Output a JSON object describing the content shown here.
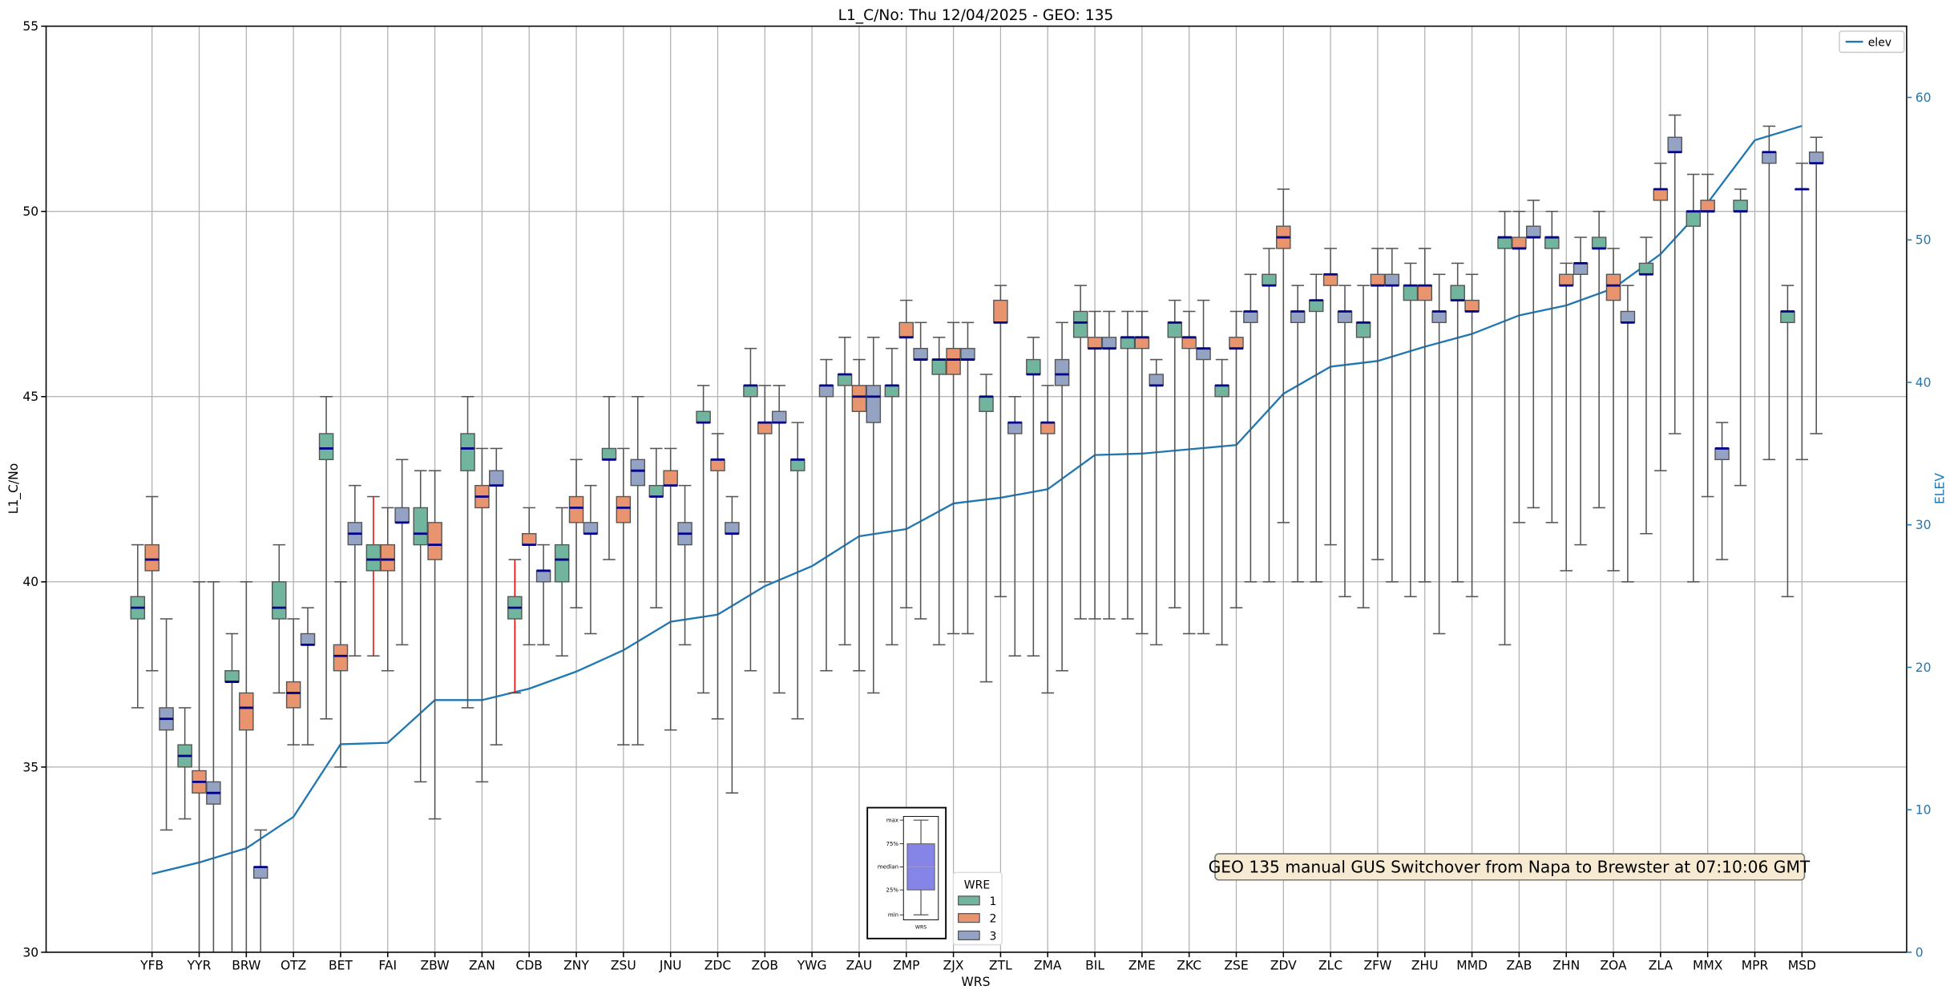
{
  "chart_data": {
    "type": "box",
    "title": "L1_C/No: Thu 12/04/2025 - GEO: 135",
    "xlabel": "WRS",
    "ylabel": "L1_C/No",
    "y2label": "ELEV",
    "ylim": [
      30,
      55
    ],
    "y2lim": [
      0,
      65
    ],
    "yticks": [
      30,
      35,
      40,
      45,
      50,
      55
    ],
    "y2ticks": [
      0,
      10,
      20,
      30,
      40,
      50,
      60
    ],
    "grid": true,
    "hue_title": "WRE",
    "hue_levels": [
      "1",
      "2",
      "3"
    ],
    "colors": {
      "1": "#72b59e",
      "2": "#e8956f",
      "3": "#94a3c4",
      "median": "#00008b",
      "elev": "#1f77b4",
      "red_whisker": "#ff0000",
      "annotation_bg": "#f6ead2"
    },
    "line_legend": "elev",
    "line_legend_placement": "top-right",
    "hue_legend_placement": "bottom-center",
    "annotation": "GEO 135 manual GUS Switchover from Napa to Brewster at 07:10:06 GMT",
    "inset_legend": {
      "labels": [
        "max",
        "75%",
        "median",
        "25%",
        "min"
      ],
      "xlabel": "WRS"
    },
    "categories": [
      "YFB",
      "YYR",
      "BRW",
      "OTZ",
      "BET",
      "FAI",
      "ZBW",
      "ZAN",
      "CDB",
      "ZNY",
      "ZSU",
      "JNU",
      "ZDC",
      "ZOB",
      "YWG",
      "ZAU",
      "ZMP",
      "ZJX",
      "ZTL",
      "ZMA",
      "BIL",
      "ZME",
      "ZKC",
      "ZSE",
      "ZDV",
      "ZLC",
      "ZFW",
      "ZHU",
      "MMD",
      "ZAB",
      "ZHN",
      "ZOA",
      "ZLA",
      "MMX",
      "MPR",
      "MSD"
    ],
    "box_fields": [
      "whislo",
      "q1",
      "med",
      "q3",
      "whishi"
    ],
    "boxes": [
      [
        [
          36.6,
          39.0,
          39.3,
          39.6,
          41.0
        ],
        [
          37.6,
          40.3,
          40.6,
          41.0,
          42.3
        ],
        [
          33.3,
          36.0,
          36.3,
          36.6,
          39.0
        ]
      ],
      [
        [
          33.6,
          35.0,
          35.3,
          35.6,
          36.6
        ],
        [
          30.0,
          34.3,
          34.6,
          34.9,
          40.0
        ],
        [
          30.0,
          34.0,
          34.3,
          34.6,
          40.0
        ]
      ],
      [
        [
          30.0,
          37.3,
          37.3,
          37.6,
          38.6
        ],
        [
          30.0,
          36.0,
          36.6,
          37.0,
          40.0
        ],
        [
          30.0,
          32.0,
          32.3,
          32.3,
          33.3
        ]
      ],
      [
        [
          37.0,
          39.0,
          39.3,
          40.0,
          41.0
        ],
        [
          35.6,
          36.6,
          37.0,
          37.3,
          39.0
        ],
        [
          35.6,
          38.3,
          38.3,
          38.6,
          39.3
        ]
      ],
      [
        [
          36.3,
          43.3,
          43.6,
          44.0,
          45.0
        ],
        [
          35.0,
          37.6,
          38.0,
          38.3,
          40.0
        ],
        [
          38.0,
          41.0,
          41.3,
          41.6,
          42.6
        ]
      ],
      [
        [
          38.0,
          40.3,
          40.6,
          41.0,
          42.3
        ],
        [
          37.6,
          40.3,
          40.6,
          41.0,
          42.0
        ],
        [
          38.3,
          41.6,
          41.6,
          42.0,
          43.3
        ]
      ],
      [
        [
          34.6,
          41.0,
          41.3,
          42.0,
          43.0
        ],
        [
          33.6,
          40.6,
          41.0,
          41.6,
          43.0
        ],
        null
      ],
      [
        [
          36.6,
          43.0,
          43.6,
          44.0,
          45.0
        ],
        [
          34.6,
          42.0,
          42.3,
          42.6,
          43.6
        ],
        [
          35.6,
          42.6,
          42.6,
          43.0,
          43.6
        ]
      ],
      [
        [
          37.0,
          39.0,
          39.3,
          39.6,
          40.6
        ],
        [
          38.3,
          41.0,
          41.0,
          41.3,
          42.0
        ],
        [
          38.3,
          40.0,
          40.3,
          40.3,
          41.0
        ]
      ],
      [
        [
          38.0,
          40.0,
          40.6,
          41.0,
          42.0
        ],
        [
          39.3,
          41.6,
          42.0,
          42.3,
          43.3
        ],
        [
          38.6,
          41.3,
          41.3,
          41.6,
          42.6
        ]
      ],
      [
        [
          40.6,
          43.3,
          43.3,
          43.6,
          45.0
        ],
        [
          35.6,
          41.6,
          42.0,
          42.3,
          43.6
        ],
        [
          35.6,
          42.6,
          43.0,
          43.3,
          45.0
        ]
      ],
      [
        [
          39.3,
          42.3,
          42.3,
          42.6,
          43.6
        ],
        [
          36.0,
          42.6,
          42.6,
          43.0,
          43.6
        ],
        [
          38.3,
          41.0,
          41.3,
          41.6,
          42.6
        ]
      ],
      [
        [
          37.0,
          44.3,
          44.3,
          44.6,
          45.3
        ],
        [
          36.3,
          43.0,
          43.3,
          43.3,
          44.0
        ],
        [
          34.3,
          41.3,
          41.3,
          41.6,
          42.3
        ]
      ],
      [
        [
          37.6,
          45.0,
          45.3,
          45.3,
          46.3
        ],
        [
          40.0,
          44.0,
          44.3,
          44.3,
          45.3
        ],
        [
          37.0,
          44.3,
          44.3,
          44.6,
          45.3
        ]
      ],
      [
        [
          36.3,
          43.0,
          43.3,
          43.3,
          44.3
        ],
        null,
        [
          37.6,
          45.0,
          45.3,
          45.3,
          46.0
        ]
      ],
      [
        [
          38.3,
          45.3,
          45.6,
          45.6,
          46.6
        ],
        [
          37.6,
          44.6,
          45.0,
          45.3,
          46.0
        ],
        [
          37.0,
          44.3,
          45.0,
          45.3,
          46.6
        ]
      ],
      [
        [
          38.3,
          45.0,
          45.3,
          45.3,
          46.3
        ],
        [
          39.3,
          46.6,
          46.6,
          47.0,
          47.6
        ],
        [
          39.0,
          46.0,
          46.0,
          46.3,
          47.0
        ]
      ],
      [
        [
          38.3,
          45.6,
          46.0,
          46.0,
          46.6
        ],
        [
          38.6,
          45.6,
          46.0,
          46.3,
          47.0
        ],
        [
          38.6,
          46.0,
          46.0,
          46.3,
          47.0
        ]
      ],
      [
        [
          37.3,
          44.6,
          45.0,
          45.0,
          45.6
        ],
        [
          39.6,
          47.0,
          47.0,
          47.6,
          48.0
        ],
        [
          38.0,
          44.0,
          44.3,
          44.3,
          45.0
        ]
      ],
      [
        [
          38.0,
          45.6,
          45.6,
          46.0,
          46.6
        ],
        [
          37.0,
          44.0,
          44.3,
          44.3,
          45.3
        ],
        [
          37.6,
          45.3,
          45.6,
          46.0,
          47.0
        ]
      ],
      [
        [
          39.0,
          46.6,
          47.0,
          47.3,
          48.0
        ],
        [
          39.0,
          46.3,
          46.3,
          46.6,
          47.3
        ],
        [
          39.0,
          46.3,
          46.3,
          46.6,
          47.3
        ]
      ],
      [
        [
          39.0,
          46.3,
          46.6,
          46.6,
          47.3
        ],
        [
          38.6,
          46.3,
          46.6,
          46.6,
          47.3
        ],
        [
          38.3,
          45.3,
          45.3,
          45.6,
          46.0
        ]
      ],
      [
        [
          39.3,
          46.6,
          47.0,
          47.0,
          47.6
        ],
        [
          38.6,
          46.3,
          46.6,
          46.6,
          47.3
        ],
        [
          38.6,
          46.0,
          46.3,
          46.3,
          47.6
        ]
      ],
      [
        [
          38.3,
          45.0,
          45.3,
          45.3,
          46.0
        ],
        [
          39.3,
          46.3,
          46.3,
          46.6,
          47.3
        ],
        [
          40.0,
          47.0,
          47.3,
          47.3,
          48.3
        ]
      ],
      [
        [
          40.0,
          48.0,
          48.0,
          48.3,
          49.0
        ],
        [
          41.6,
          49.0,
          49.3,
          49.6,
          50.6
        ],
        [
          40.0,
          47.0,
          47.3,
          47.3,
          48.0
        ]
      ],
      [
        [
          40.0,
          47.3,
          47.6,
          47.6,
          48.3
        ],
        [
          41.0,
          48.0,
          48.3,
          48.3,
          49.0
        ],
        [
          39.6,
          47.0,
          47.3,
          47.3,
          48.0
        ]
      ],
      [
        [
          39.3,
          46.6,
          47.0,
          47.0,
          48.0
        ],
        [
          40.6,
          48.0,
          48.0,
          48.3,
          49.0
        ],
        [
          40.0,
          48.0,
          48.0,
          48.3,
          49.0
        ]
      ],
      [
        [
          39.6,
          47.6,
          48.0,
          48.0,
          48.6
        ],
        [
          40.0,
          47.6,
          48.0,
          48.0,
          49.0
        ],
        [
          38.6,
          47.0,
          47.3,
          47.3,
          48.3
        ]
      ],
      [
        [
          40.0,
          47.6,
          47.6,
          48.0,
          48.6
        ],
        [
          39.6,
          47.3,
          47.3,
          47.6,
          48.3
        ],
        null
      ],
      [
        [
          38.3,
          49.0,
          49.3,
          49.3,
          50.0
        ],
        [
          41.6,
          49.0,
          49.0,
          49.3,
          50.0
        ],
        [
          42.0,
          49.3,
          49.3,
          49.6,
          50.3
        ]
      ],
      [
        [
          41.6,
          49.0,
          49.3,
          49.3,
          50.0
        ],
        [
          40.3,
          48.0,
          48.0,
          48.3,
          48.6
        ],
        [
          41.0,
          48.3,
          48.6,
          48.6,
          49.3
        ]
      ],
      [
        [
          42.0,
          49.0,
          49.0,
          49.3,
          50.0
        ],
        [
          40.3,
          47.6,
          48.0,
          48.3,
          49.0
        ],
        [
          40.0,
          47.0,
          47.0,
          47.3,
          48.0
        ]
      ],
      [
        [
          41.3,
          48.3,
          48.3,
          48.6,
          49.3
        ],
        [
          43.0,
          50.3,
          50.6,
          50.6,
          51.3
        ],
        [
          44.0,
          51.6,
          51.6,
          52.0,
          52.6
        ]
      ],
      [
        [
          40.0,
          49.6,
          50.0,
          50.0,
          51.0
        ],
        [
          42.3,
          50.0,
          50.0,
          50.3,
          51.0
        ],
        [
          40.6,
          43.3,
          43.6,
          43.6,
          44.3
        ]
      ],
      [
        [
          42.6,
          50.0,
          50.0,
          50.3,
          50.6
        ],
        null,
        [
          43.3,
          51.3,
          51.6,
          51.6,
          52.3
        ]
      ],
      [
        [
          39.6,
          47.0,
          47.3,
          47.3,
          48.0
        ],
        [
          43.3,
          50.6,
          50.6,
          50.6,
          51.3
        ],
        [
          44.0,
          51.3,
          51.3,
          51.6,
          52.0
        ]
      ]
    ],
    "red_whiskers": [
      [
        "FAI",
        "1"
      ],
      [
        "CDB",
        "1"
      ]
    ],
    "elev": [
      5.5,
      6.3,
      7.3,
      9.5,
      14.6,
      14.7,
      17.7,
      17.7,
      18.5,
      19.7,
      21.2,
      23.2,
      23.7,
      25.7,
      27.1,
      29.2,
      29.7,
      31.5,
      31.9,
      32.5,
      34.9,
      35.0,
      35.3,
      35.6,
      39.2,
      41.1,
      41.5,
      42.5,
      43.4,
      44.7,
      45.4,
      46.6,
      49.0,
      52.6,
      57.0,
      58.0
    ]
  }
}
